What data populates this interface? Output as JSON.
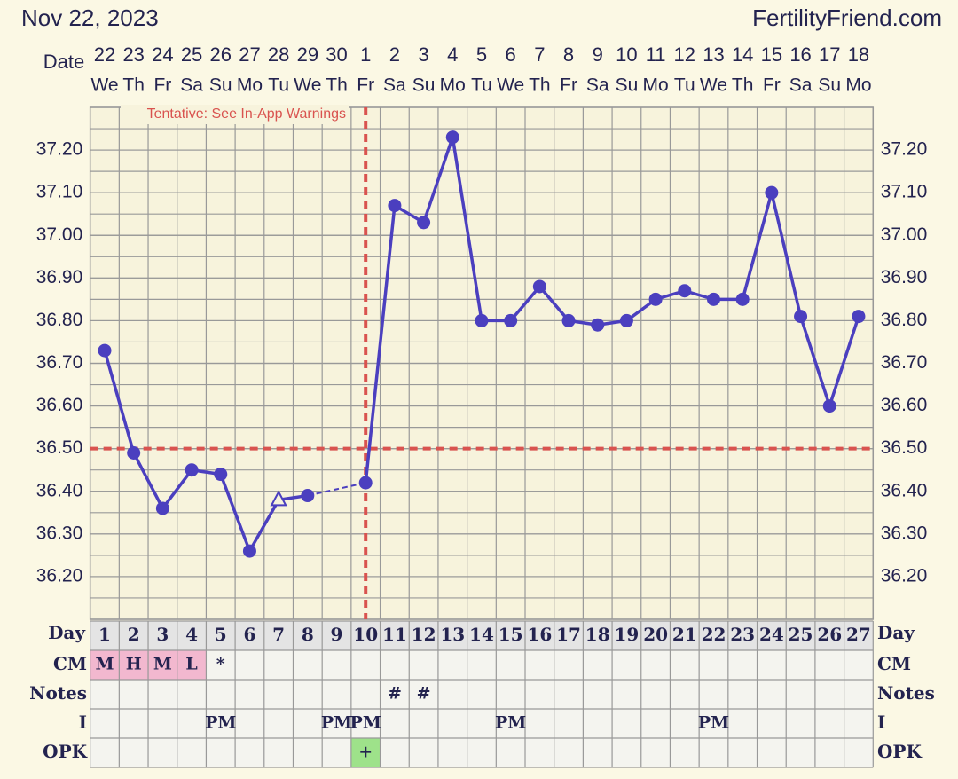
{
  "chart_data": {
    "type": "line",
    "title": "Nov 22, 2023",
    "source": "FertilityFriend.com",
    "date_label": "Date",
    "dates": [
      "22",
      "23",
      "24",
      "25",
      "26",
      "27",
      "28",
      "29",
      "30",
      "1",
      "2",
      "3",
      "4",
      "5",
      "6",
      "7",
      "8",
      "9",
      "10",
      "11",
      "12",
      "13",
      "14",
      "15",
      "16",
      "17",
      "18"
    ],
    "weekdays": [
      "We",
      "Th",
      "Fr",
      "Sa",
      "Su",
      "Mo",
      "Tu",
      "We",
      "Th",
      "Fr",
      "Sa",
      "Su",
      "Mo",
      "Tu",
      "We",
      "Th",
      "Fr",
      "Sa",
      "Su",
      "Mo",
      "Tu",
      "We",
      "Th",
      "Fr",
      "Sa",
      "Su",
      "Mo"
    ],
    "day_label": "Day",
    "categories": [
      1,
      2,
      3,
      4,
      5,
      6,
      7,
      8,
      9,
      10,
      11,
      12,
      13,
      14,
      15,
      16,
      17,
      18,
      19,
      20,
      21,
      22,
      23,
      24,
      25,
      26,
      27
    ],
    "series": [
      {
        "color": "#4b3fbf",
        "values": [
          36.73,
          36.49,
          36.36,
          36.45,
          36.44,
          36.26,
          36.38,
          36.39,
          null,
          36.42,
          37.07,
          37.03,
          37.23,
          36.8,
          36.8,
          36.88,
          36.8,
          36.79,
          36.8,
          36.85,
          36.87,
          36.85,
          36.85,
          37.1,
          36.81,
          36.6,
          36.81
        ],
        "markers": [
          "circle",
          "circle",
          "circle",
          "circle",
          "circle",
          "circle",
          "open-triangle",
          "circle",
          null,
          "circle",
          "circle",
          "circle",
          "circle",
          "circle",
          "circle",
          "circle",
          "circle",
          "circle",
          "circle",
          "circle",
          "circle",
          "circle",
          "circle",
          "circle",
          "circle",
          "circle",
          "circle"
        ]
      }
    ],
    "ylim": [
      36.1,
      37.3
    ],
    "yticks": [
      {
        "value": 36.2,
        "label": "36.20"
      },
      {
        "value": 36.3,
        "label": "36.30"
      },
      {
        "value": 36.4,
        "label": "36.40"
      },
      {
        "value": 36.5,
        "label": "36.50"
      },
      {
        "value": 36.6,
        "label": "36.60"
      },
      {
        "value": 36.7,
        "label": "36.70"
      },
      {
        "value": 36.8,
        "label": "36.80"
      },
      {
        "value": 36.9,
        "label": "36.90"
      },
      {
        "value": 37.0,
        "label": "37.00"
      },
      {
        "value": 37.1,
        "label": "37.10"
      },
      {
        "value": 37.2,
        "label": "37.20"
      }
    ],
    "grid": true,
    "coverline": 36.5,
    "ovulation_day": 10,
    "reference_color": "#d9534f",
    "annotation": "Tentative: See In-App Warnings",
    "rows": [
      {
        "label": "CM",
        "cells": [
          "M",
          "H",
          "M",
          "L",
          "*",
          null,
          null,
          null,
          null,
          null,
          null,
          null,
          null,
          null,
          null,
          null,
          null,
          null,
          null,
          null,
          null,
          null,
          null,
          null,
          null,
          null,
          null
        ],
        "cell_colors": [
          "#f2b8cf",
          "#f2b8cf",
          "#f2b8cf",
          "#f2b8cf",
          null,
          null,
          null,
          null,
          null,
          null,
          null,
          null,
          null,
          null,
          null,
          null,
          null,
          null,
          null,
          null,
          null,
          null,
          null,
          null,
          null,
          null,
          null
        ]
      },
      {
        "label": "Notes",
        "cells": [
          null,
          null,
          null,
          null,
          null,
          null,
          null,
          null,
          null,
          null,
          "#",
          "#",
          null,
          null,
          null,
          null,
          null,
          null,
          null,
          null,
          null,
          null,
          null,
          null,
          null,
          null,
          null
        ]
      },
      {
        "label": "I",
        "cells": [
          null,
          null,
          null,
          null,
          "PM",
          null,
          null,
          null,
          "PM",
          "PM",
          null,
          null,
          null,
          null,
          "PM",
          null,
          null,
          null,
          null,
          null,
          null,
          "PM",
          null,
          null,
          null,
          null,
          null
        ]
      },
      {
        "label": "OPK",
        "cells": [
          null,
          null,
          null,
          null,
          null,
          null,
          null,
          null,
          null,
          "+",
          null,
          null,
          null,
          null,
          null,
          null,
          null,
          null,
          null,
          null,
          null,
          null,
          null,
          null,
          null,
          null,
          null
        ],
        "cell_colors": [
          null,
          null,
          null,
          null,
          null,
          null,
          null,
          null,
          null,
          "#9ee28a",
          null,
          null,
          null,
          null,
          null,
          null,
          null,
          null,
          null,
          null,
          null,
          null,
          null,
          null,
          null,
          null,
          null
        ]
      }
    ]
  }
}
